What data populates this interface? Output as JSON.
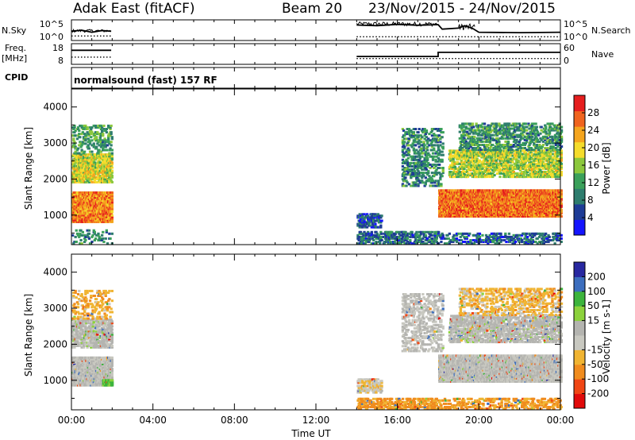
{
  "header": {
    "station": "Adak East (fitACF)",
    "beam": "Beam 20",
    "date_range": "23/Nov/2015 - 24/Nov/2015"
  },
  "side_labels": {
    "nsky": "N.Sky",
    "freq_line1": "Freq.",
    "freq_line2": "[MHz]",
    "cpid": "CPID",
    "nsearch": "N.Search",
    "nave": "Nave"
  },
  "cpid_text": "normalsound (fast) 157 RF",
  "x_axis_title": "Time UT",
  "colors": {
    "power_scale": [
      "#1414ff",
      "#1e3c96",
      "#2e7d6e",
      "#3aa05a",
      "#8cc83c",
      "#f5dc2c",
      "#f5a51e",
      "#f0641e",
      "#e61e1e"
    ],
    "velocity_scale": [
      "#e10a0a",
      "#f04614",
      "#f08c1e",
      "#f0b432",
      "#c8c8c0",
      "#b4b4b0",
      "#8cd23c",
      "#3cb43c",
      "#3c6ebe",
      "#2828a0"
    ]
  },
  "chart_data": [
    {
      "type": "line",
      "panel": "N.Sky / N.Search",
      "x_unit": "hours UT",
      "xlim": [
        0,
        24
      ],
      "y_left_ticks": [
        "10^5",
        "10^0"
      ],
      "y_right_ticks": [
        "10^5",
        "10^0"
      ],
      "series": [
        {
          "name": "N.Sky",
          "style": "solid",
          "segments": [
            [
              [
                0,
                0.45
              ],
              [
                0.5,
                0.5
              ],
              [
                1.0,
                0.4
              ],
              [
                1.5,
                0.48
              ],
              [
                1.95,
                0.45
              ]
            ],
            [
              [
                14.0,
                0.75
              ],
              [
                15.0,
                0.72
              ],
              [
                16.0,
                0.78
              ],
              [
                17.0,
                0.74
              ],
              [
                18.0,
                0.77
              ],
              [
                18.2,
                0.55
              ],
              [
                19.0,
                0.6
              ],
              [
                19.3,
                0.72
              ],
              [
                19.7,
                0.58
              ],
              [
                20.0,
                0.4
              ],
              [
                22.0,
                0.38
              ],
              [
                24.0,
                0.4
              ]
            ]
          ]
        },
        {
          "name": "N.Search",
          "style": "dotted",
          "segments": [
            [
              [
                0,
                0.22
              ],
              [
                1.95,
                0.22
              ]
            ],
            [
              [
                14.0,
                0.18
              ],
              [
                24.0,
                0.18
              ]
            ]
          ]
        }
      ]
    },
    {
      "type": "line",
      "panel": "Freq. / Nave",
      "xlim": [
        0,
        24
      ],
      "y_left_ticks": [
        "18",
        "8"
      ],
      "y_right_ticks": [
        "60",
        "0"
      ],
      "series": [
        {
          "name": "Freq.",
          "style": "solid",
          "segments": [
            [
              [
                0,
                0.68
              ],
              [
                1.95,
                0.68
              ]
            ],
            [
              [
                14.0,
                0.38
              ],
              [
                18.0,
                0.38
              ],
              [
                18.0,
                0.58
              ],
              [
                24.0,
                0.58
              ]
            ]
          ]
        },
        {
          "name": "Nave",
          "style": "dotted",
          "segments": [
            [
              [
                0,
                0.35
              ],
              [
                1.95,
                0.35
              ]
            ],
            [
              [
                14.0,
                0.28
              ],
              [
                24.0,
                0.28
              ]
            ]
          ]
        }
      ]
    },
    {
      "type": "heatmap",
      "panel": "Power",
      "xlabel": "",
      "ylabel": "Slant Range [km]",
      "xlim": [
        0,
        24
      ],
      "ylim": [
        180,
        4500
      ],
      "y_ticks": [
        1000,
        2000,
        3000,
        4000
      ],
      "colorbar": {
        "label": "Power [dB]",
        "ticks": [
          4,
          8,
          12,
          16,
          20,
          24,
          28
        ],
        "range": [
          0,
          32
        ]
      },
      "regions": [
        {
          "t": [
            0,
            1.95
          ],
          "r": [
            800,
            1650
          ],
          "value": 25,
          "density": 0.95
        },
        {
          "t": [
            0,
            1.95
          ],
          "r": [
            1900,
            2700
          ],
          "value": 18,
          "density": 0.7
        },
        {
          "t": [
            0,
            1.95
          ],
          "r": [
            2700,
            3500
          ],
          "value": 12,
          "density": 0.25
        },
        {
          "t": [
            0,
            1.95
          ],
          "r": [
            200,
            600
          ],
          "value": 10,
          "density": 0.15
        },
        {
          "t": [
            14,
            15.2
          ],
          "r": [
            650,
            1050
          ],
          "value": 6,
          "density": 0.5
        },
        {
          "t": [
            14,
            18
          ],
          "r": [
            200,
            550
          ],
          "value": 8,
          "density": 0.45
        },
        {
          "t": [
            16.2,
            18.2
          ],
          "r": [
            1800,
            3400
          ],
          "value": 10,
          "density": 0.3
        },
        {
          "t": [
            18,
            24
          ],
          "r": [
            950,
            1700
          ],
          "value": 26,
          "density": 0.95
        },
        {
          "t": [
            18.5,
            24
          ],
          "r": [
            2050,
            2800
          ],
          "value": 17,
          "density": 0.55
        },
        {
          "t": [
            19,
            24
          ],
          "r": [
            2800,
            3550
          ],
          "value": 11,
          "density": 0.35
        },
        {
          "t": [
            18,
            24
          ],
          "r": [
            200,
            500
          ],
          "value": 7,
          "density": 0.3
        }
      ]
    },
    {
      "type": "heatmap",
      "panel": "Velocity",
      "xlabel": "Time UT",
      "ylabel": "Slant Range [km]",
      "xlim": [
        0,
        24
      ],
      "ylim": [
        180,
        4500
      ],
      "x_ticks": [
        "00:00",
        "04:00",
        "08:00",
        "12:00",
        "16:00",
        "20:00",
        "00:00"
      ],
      "y_ticks": [
        1000,
        2000,
        3000,
        4000
      ],
      "colorbar": {
        "label": "Velocity [m s-1]",
        "ticks": [
          -200,
          -100,
          -50,
          -15,
          15,
          50,
          100,
          200
        ]
      },
      "regions": [
        {
          "t": [
            0,
            1.95
          ],
          "r": [
            850,
            1650
          ],
          "value": 0,
          "density": 0.9
        },
        {
          "t": [
            1.5,
            1.95
          ],
          "r": [
            850,
            1000
          ],
          "value": 60,
          "density": 0.9
        },
        {
          "t": [
            0,
            1.95
          ],
          "r": [
            1900,
            2700
          ],
          "value": 5,
          "density": 0.6
        },
        {
          "t": [
            0,
            1.95
          ],
          "r": [
            2700,
            3500
          ],
          "value": -40,
          "density": 0.2
        },
        {
          "t": [
            14,
            18
          ],
          "r": [
            200,
            500
          ],
          "value": -60,
          "density": 0.45
        },
        {
          "t": [
            14,
            15.2
          ],
          "r": [
            650,
            1050
          ],
          "value": -10,
          "density": 0.5
        },
        {
          "t": [
            16.2,
            18.2
          ],
          "r": [
            1800,
            3400
          ],
          "value": 0,
          "density": 0.3
        },
        {
          "t": [
            18,
            24
          ],
          "r": [
            950,
            1700
          ],
          "value": 0,
          "density": 0.9
        },
        {
          "t": [
            18.5,
            24
          ],
          "r": [
            2050,
            2800
          ],
          "value": 5,
          "density": 0.55
        },
        {
          "t": [
            19,
            24
          ],
          "r": [
            2800,
            3550
          ],
          "value": -30,
          "density": 0.3
        },
        {
          "t": [
            18,
            24
          ],
          "r": [
            200,
            500
          ],
          "value": -60,
          "density": 0.35
        }
      ]
    }
  ]
}
